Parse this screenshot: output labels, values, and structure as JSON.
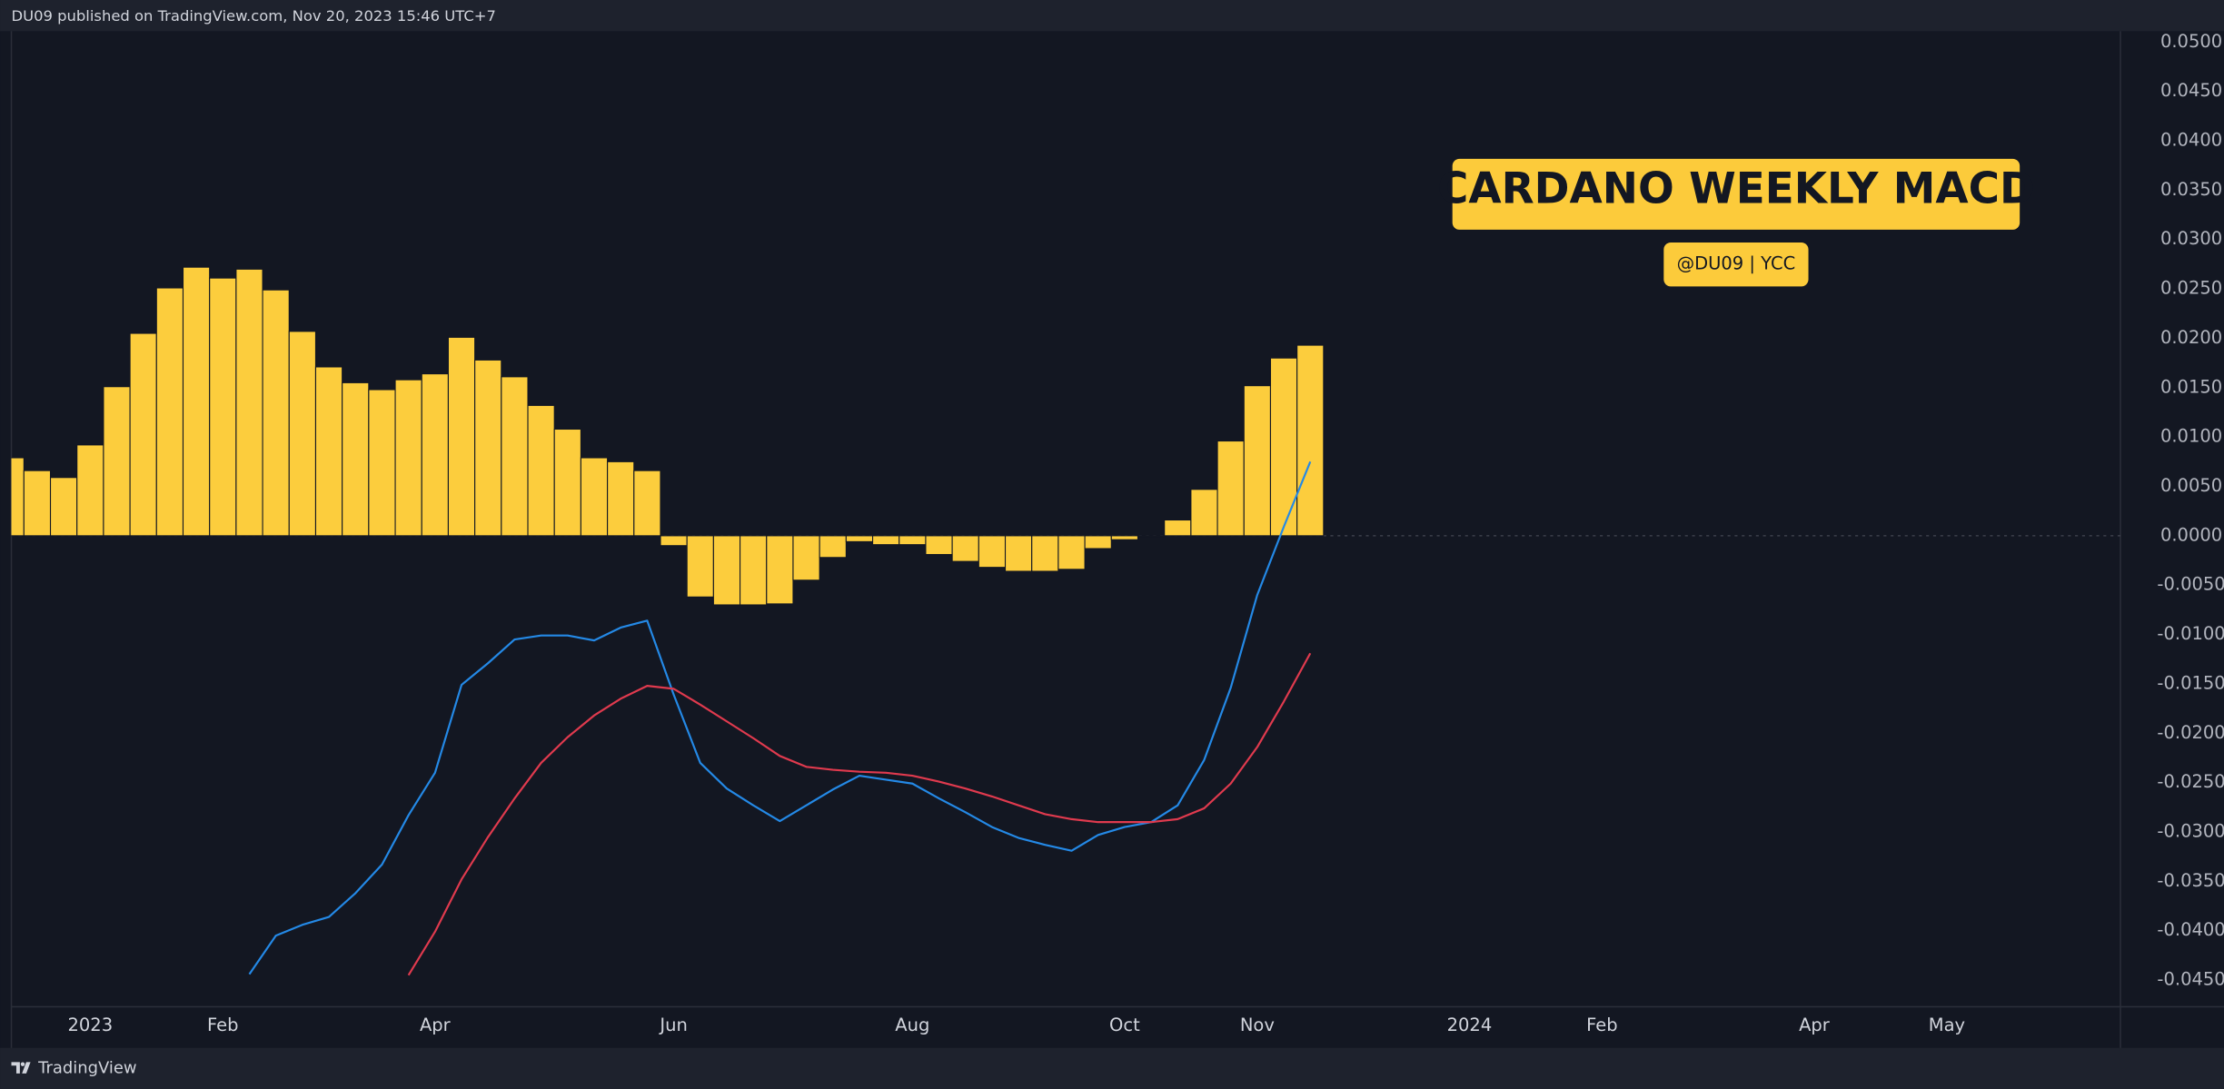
{
  "header": {
    "publisher": "DU09 published on TradingView.com, Nov 20, 2023 15:46 UTC+7"
  },
  "footer": {
    "brand": "TradingView"
  },
  "chart_data": {
    "type": "bar",
    "title": "CARDANO WEEKLY MACD",
    "subtitle": "@DU09 | YCC",
    "categories": [
      null,
      null,
      null,
      "2023",
      null,
      null,
      null,
      null,
      "Feb",
      null,
      null,
      null,
      null,
      null,
      null,
      null,
      "Apr",
      null,
      null,
      null,
      null,
      null,
      null,
      null,
      null,
      "Jun",
      null,
      null,
      null,
      null,
      null,
      null,
      null,
      null,
      "Aug",
      null,
      null,
      null,
      null,
      null,
      null,
      null,
      "Oct",
      null,
      null,
      null,
      null,
      "Nov",
      null,
      null,
      null,
      null,
      null,
      null,
      null,
      "2024",
      null,
      null,
      null,
      null,
      "Feb",
      null,
      null,
      null,
      null,
      null,
      null,
      null,
      "Apr",
      null,
      null,
      null,
      null,
      "May",
      null,
      null,
      null,
      null,
      null,
      null
    ],
    "series": [
      {
        "type": "bar",
        "color": "#fccd3d",
        "values": [
          0.0079,
          0.0066,
          0.0059,
          0.0092,
          0.0151,
          0.0205,
          0.0251,
          0.0272,
          0.0261,
          0.027,
          0.0249,
          0.0207,
          0.0171,
          0.0155,
          0.0148,
          0.0158,
          0.0164,
          0.0201,
          0.0178,
          0.0161,
          0.0132,
          0.0108,
          0.0079,
          0.0075,
          0.0066,
          -0.001,
          -0.0062,
          -0.007,
          -0.007,
          -0.0069,
          -0.0045,
          -0.0022,
          -0.0006,
          -0.0009,
          -0.0009,
          -0.0019,
          -0.0026,
          -0.0032,
          -0.0036,
          -0.0036,
          -0.0034,
          -0.0013,
          -0.0004,
          -0.0001,
          0.0016,
          0.0047,
          0.0096,
          0.0152,
          0.018,
          0.0193,
          null,
          null,
          null,
          null,
          null,
          null,
          null,
          null,
          null,
          null,
          null,
          null,
          null,
          null,
          null,
          null,
          null,
          null,
          null,
          null,
          null,
          null,
          null,
          null,
          null,
          null,
          null,
          null,
          null,
          null
        ]
      },
      {
        "type": "line",
        "color": "#2489e6",
        "values": [
          null,
          null,
          null,
          null,
          null,
          null,
          null,
          null,
          null,
          -0.0444,
          -0.0405,
          -0.0394,
          -0.0386,
          -0.0362,
          -0.0333,
          -0.0283,
          -0.024,
          -0.0151,
          -0.0129,
          -0.0105,
          -0.0101,
          -0.0101,
          -0.0106,
          -0.0093,
          -0.0086,
          -0.0161,
          -0.023,
          -0.0256,
          -0.0273,
          -0.0289,
          -0.0273,
          -0.0257,
          -0.0243,
          -0.0247,
          -0.0251,
          -0.0266,
          -0.028,
          -0.0295,
          -0.0306,
          -0.0313,
          -0.0319,
          -0.0303,
          -0.0295,
          -0.029,
          -0.0273,
          -0.0227,
          -0.0154,
          -0.006,
          0.0009,
          0.0075,
          null,
          null,
          null,
          null,
          null,
          null,
          null,
          null,
          null,
          null,
          null,
          null,
          null,
          null,
          null,
          null,
          null,
          null,
          null,
          null,
          null,
          null,
          null,
          null,
          null,
          null,
          null,
          null,
          null,
          null
        ]
      },
      {
        "type": "line",
        "color": "#e03a4e",
        "values": [
          null,
          null,
          null,
          null,
          null,
          null,
          null,
          null,
          null,
          null,
          null,
          null,
          null,
          null,
          null,
          -0.0445,
          -0.0401,
          -0.0348,
          -0.0305,
          -0.0266,
          -0.023,
          -0.0204,
          -0.0182,
          -0.0165,
          -0.0152,
          -0.0155,
          -0.0171,
          -0.0188,
          -0.0205,
          -0.0223,
          -0.0234,
          -0.0237,
          -0.0239,
          -0.024,
          -0.0243,
          -0.0249,
          -0.0256,
          -0.0264,
          -0.0273,
          -0.0282,
          -0.0287,
          -0.029,
          -0.029,
          -0.029,
          -0.0287,
          -0.0276,
          -0.0251,
          -0.0214,
          -0.0168,
          -0.0119,
          null,
          null,
          null,
          null,
          null,
          null,
          null,
          null,
          null,
          null,
          null,
          null,
          null,
          null,
          null,
          null,
          null,
          null,
          null,
          null,
          null,
          null,
          null,
          null,
          null,
          null,
          null,
          null,
          null,
          null
        ]
      }
    ],
    "ylim": [
      -0.0477,
      0.0511
    ],
    "yticks": [
      {
        "value": 0.05,
        "label": "0.0500"
      },
      {
        "value": 0.045,
        "label": "0.0450"
      },
      {
        "value": 0.04,
        "label": "0.0400"
      },
      {
        "value": 0.035,
        "label": "0.0350"
      },
      {
        "value": 0.03,
        "label": "0.0300"
      },
      {
        "value": 0.025,
        "label": "0.0250"
      },
      {
        "value": 0.02,
        "label": "0.0200"
      },
      {
        "value": 0.015,
        "label": "0.0150"
      },
      {
        "value": 0.01,
        "label": "0.0100"
      },
      {
        "value": 0.005,
        "label": "0.0050"
      },
      {
        "value": 0,
        "label": "0.0000"
      },
      {
        "value": -0.005,
        "label": "-0.0050"
      },
      {
        "value": -0.01,
        "label": "-0.0100"
      },
      {
        "value": -0.015,
        "label": "-0.0150"
      },
      {
        "value": -0.02,
        "label": "-0.0200"
      },
      {
        "value": -0.025,
        "label": "-0.0250"
      },
      {
        "value": -0.03,
        "label": "-0.0300"
      },
      {
        "value": -0.035,
        "label": "-0.0350"
      },
      {
        "value": -0.04,
        "label": "-0.0400"
      },
      {
        "value": -0.045,
        "label": "-0.0450"
      }
    ],
    "grid": false
  }
}
